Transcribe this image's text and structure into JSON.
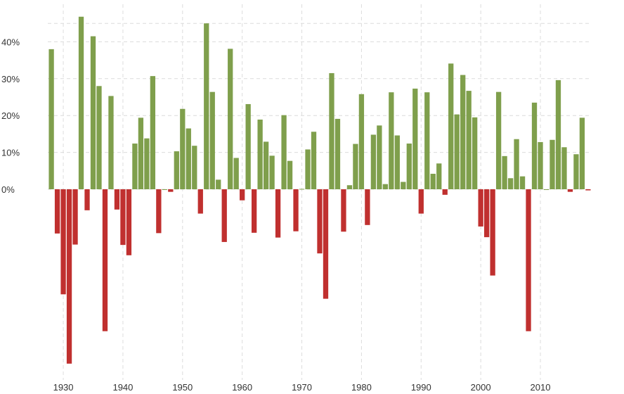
{
  "chart_data": {
    "type": "bar",
    "title": "",
    "xlabel": "",
    "ylabel": "",
    "grid": true,
    "legend": "none",
    "colors": {
      "positive": "#7f9f4c",
      "negative": "#c0302f",
      "grid": "#dcdcdc"
    },
    "y_ticks": [
      0,
      10,
      20,
      30,
      40
    ],
    "y_tick_labels": [
      "0%",
      "10%",
      "20%",
      "30%",
      "40%"
    ],
    "ylim": [
      -48,
      48
    ],
    "x_ticks": [
      1930,
      1940,
      1950,
      1960,
      1970,
      1980,
      1990,
      2000,
      2010
    ],
    "x_tick_labels": [
      "1930",
      "1940",
      "1950",
      "1960",
      "1970",
      "1980",
      "1990",
      "2000",
      "2010"
    ],
    "xlim": [
      1927.4,
      2018.6
    ],
    "categories": [
      1928,
      1929,
      1930,
      1931,
      1932,
      1933,
      1934,
      1935,
      1936,
      1937,
      1938,
      1939,
      1940,
      1941,
      1942,
      1943,
      1944,
      1945,
      1946,
      1947,
      1948,
      1949,
      1950,
      1951,
      1952,
      1953,
      1954,
      1955,
      1956,
      1957,
      1958,
      1959,
      1960,
      1961,
      1962,
      1963,
      1964,
      1965,
      1966,
      1967,
      1968,
      1969,
      1970,
      1971,
      1972,
      1973,
      1974,
      1975,
      1976,
      1977,
      1978,
      1979,
      1980,
      1981,
      1982,
      1983,
      1984,
      1985,
      1986,
      1987,
      1988,
      1989,
      1990,
      1991,
      1992,
      1993,
      1994,
      1995,
      1996,
      1997,
      1998,
      1999,
      2000,
      2001,
      2002,
      2003,
      2004,
      2005,
      2006,
      2007,
      2008,
      2009,
      2010,
      2011,
      2012,
      2013,
      2014,
      2015,
      2016,
      2017,
      2018
    ],
    "values": [
      38.0,
      -12.0,
      -28.5,
      -47.3,
      -15.0,
      46.8,
      -5.7,
      41.5,
      28.0,
      -38.5,
      25.3,
      -5.5,
      -15.1,
      -17.9,
      12.4,
      19.4,
      13.8,
      30.7,
      -11.9,
      0.0,
      -0.7,
      10.3,
      21.8,
      16.5,
      11.8,
      -6.6,
      45.0,
      26.4,
      2.6,
      -14.3,
      38.1,
      8.5,
      -3.0,
      23.1,
      -11.8,
      18.9,
      12.9,
      9.1,
      -13.1,
      20.1,
      7.7,
      -11.4,
      0.1,
      10.8,
      15.6,
      -17.4,
      -29.7,
      31.5,
      19.1,
      -11.5,
      1.1,
      12.3,
      25.8,
      -9.7,
      14.8,
      17.3,
      1.4,
      26.3,
      14.6,
      2.0,
      12.4,
      27.3,
      -6.6,
      26.3,
      4.2,
      7.0,
      -1.5,
      34.1,
      20.3,
      31.0,
      26.7,
      19.5,
      -10.1,
      -13.0,
      -23.4,
      26.4,
      9.0,
      3.0,
      13.6,
      3.5,
      -38.5,
      23.5,
      12.8,
      0.0,
      13.4,
      29.6,
      11.4,
      -0.7,
      9.5,
      19.4,
      -0.3
    ]
  }
}
